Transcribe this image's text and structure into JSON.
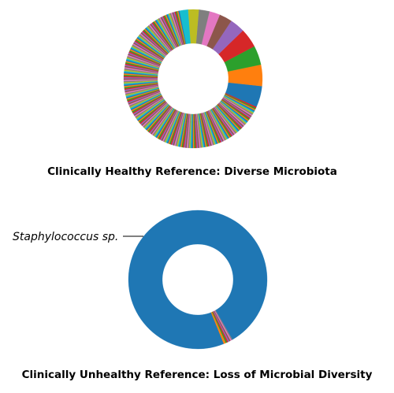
{
  "chart_data": [
    {
      "type": "pie",
      "donut": true,
      "title": "Clinically Healthy Reference: Diverse Microbiota",
      "start_angle_deg": 0,
      "direction": "counterclockwise",
      "major_slices": [
        {
          "value": 5.0,
          "color": "#1f77b4"
        },
        {
          "value": 5.0,
          "color": "#ff7f0e"
        },
        {
          "value": 4.5,
          "color": "#2ca02c"
        },
        {
          "value": 4.5,
          "color": "#d62728"
        },
        {
          "value": 3.5,
          "color": "#9467bd"
        },
        {
          "value": 3.0,
          "color": "#8c564b"
        },
        {
          "value": 2.5,
          "color": "#e377c2"
        },
        {
          "value": 2.5,
          "color": "#7f7f7f"
        },
        {
          "value": 2.5,
          "color": "#bcbd22"
        },
        {
          "value": 2.0,
          "color": "#17becf"
        }
      ],
      "minor_slice_count": 224,
      "minor_slices_total": 65.5,
      "palette": [
        "#1f77b4",
        "#ff7f0e",
        "#2ca02c",
        "#d62728",
        "#9467bd",
        "#8c564b",
        "#e377c2",
        "#7f7f7f",
        "#bcbd22",
        "#17becf"
      ]
    },
    {
      "type": "pie",
      "donut": true,
      "title": "Clinically Unhealthy Reference: Loss of Microbial Diversity",
      "start_angle_deg": 0,
      "direction": "counterclockwise",
      "slices": [
        {
          "label": "Staphylococcus sp.",
          "value": 97.8,
          "color": "#1f77b4"
        },
        {
          "label": "",
          "value": 0.5,
          "color": "#ff7f0e"
        },
        {
          "label": "",
          "value": 0.3,
          "color": "#2ca02c"
        },
        {
          "label": "",
          "value": 0.3,
          "color": "#d62728"
        },
        {
          "label": "",
          "value": 0.3,
          "color": "#9467bd"
        },
        {
          "label": "",
          "value": 0.3,
          "color": "#8c564b"
        },
        {
          "label": "",
          "value": 0.3,
          "color": "#e377c2"
        },
        {
          "label": "",
          "value": 0.2,
          "color": "#7f7f7f"
        }
      ],
      "annotation": "Staphylococcus sp."
    }
  ]
}
